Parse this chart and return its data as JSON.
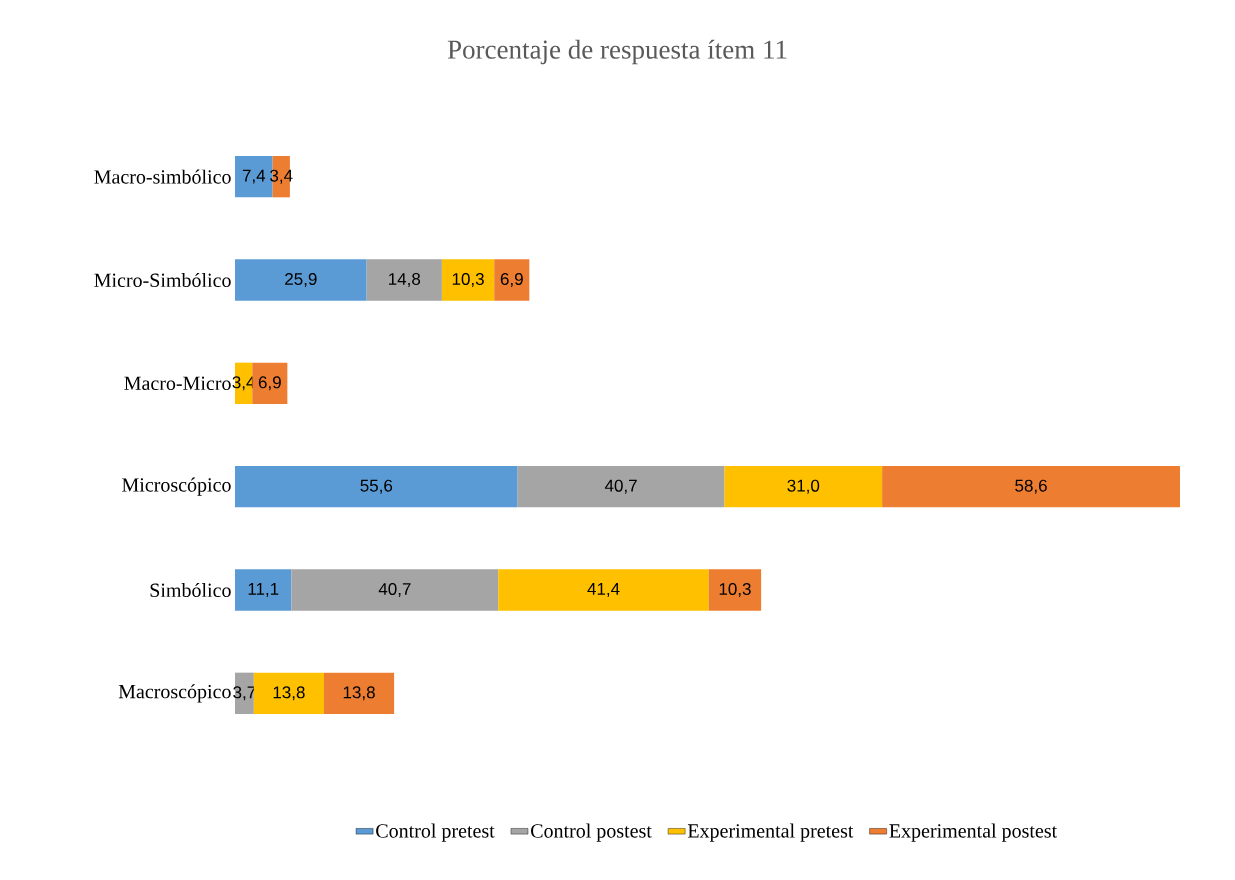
{
  "chart_data": {
    "type": "bar",
    "orientation": "horizontal",
    "stacked": true,
    "title": "Porcentaje de respuesta ítem 11",
    "categories": [
      "Macro-simbólico",
      "Micro-Simbólico",
      "Macro-Micro",
      "Microscópico",
      "Simbólico",
      "Macroscópico"
    ],
    "series": [
      {
        "name": "Control pretest",
        "color": "#5b9bd5",
        "values": [
          7.4,
          25.9,
          null,
          55.6,
          11.1,
          null
        ],
        "value_labels": [
          "7,4",
          "25,9",
          null,
          "55,6",
          "11,1",
          null
        ]
      },
      {
        "name": "Control postest",
        "color": "#a5a5a5",
        "values": [
          null,
          14.8,
          null,
          40.7,
          40.7,
          3.7
        ],
        "value_labels": [
          null,
          "14,8",
          null,
          "40,7",
          "40,7",
          "3,7"
        ]
      },
      {
        "name": "Experimental pretest",
        "color": "#ffc000",
        "values": [
          null,
          10.3,
          3.4,
          31.0,
          41.4,
          13.8
        ],
        "value_labels": [
          null,
          "10,3",
          "3,4",
          "31,0",
          "41,4",
          "13,8"
        ]
      },
      {
        "name": "Experimental postest",
        "color": "#ed7d31",
        "values": [
          3.4,
          6.9,
          6.9,
          58.6,
          10.3,
          13.8
        ],
        "value_labels": [
          "3,4",
          "6,9",
          "6,9",
          "58,6",
          "10,3",
          "13,8"
        ]
      }
    ],
    "legend": "bottom"
  }
}
